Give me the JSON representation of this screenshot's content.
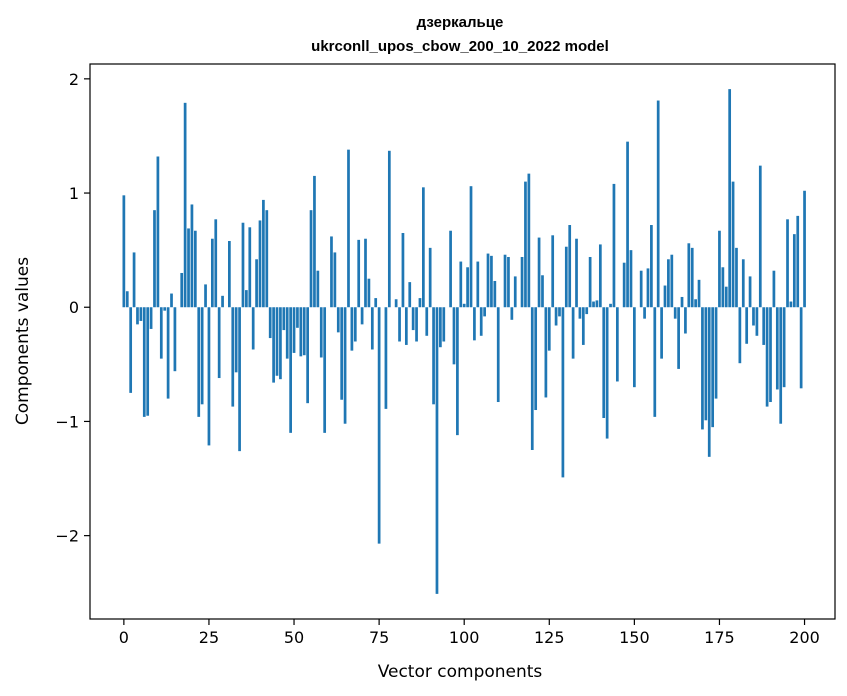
{
  "chart_data": {
    "type": "bar",
    "title": "дзеркальце",
    "subtitle": "ukrconll_upos_cbow_200_10_2022 model",
    "xlabel": "Vector components",
    "ylabel": "Components values",
    "xlim": [
      -9.95,
      208.95
    ],
    "ylim": [
      -2.73,
      2.13
    ],
    "xticks": [
      0,
      25,
      50,
      75,
      100,
      125,
      150,
      175,
      200
    ],
    "yticks": [
      -2,
      -1,
      0,
      1,
      2
    ],
    "ytick_labels": [
      "−2",
      "−1",
      "0",
      "1",
      "2"
    ],
    "grid": false,
    "bar_color": "#1f77b4",
    "values": [
      0.98,
      0.14,
      -0.75,
      0.48,
      -0.15,
      -0.12,
      -0.96,
      -0.95,
      -0.19,
      0.85,
      1.32,
      -0.45,
      -0.03,
      -0.8,
      0.12,
      -0.56,
      0.0,
      0.3,
      1.79,
      0.69,
      0.9,
      0.67,
      -0.96,
      -0.85,
      0.2,
      -1.21,
      0.6,
      0.77,
      -0.62,
      0.1,
      0.0,
      0.58,
      -0.87,
      -0.57,
      -1.26,
      0.74,
      0.15,
      0.7,
      -0.37,
      0.42,
      0.76,
      0.94,
      0.85,
      -0.27,
      -0.66,
      -0.6,
      -0.63,
      -0.2,
      -0.45,
      -1.1,
      -0.4,
      -0.18,
      -0.43,
      -0.42,
      -0.84,
      0.85,
      1.15,
      0.32,
      -0.44,
      -1.1,
      0.0,
      0.62,
      0.48,
      -0.22,
      -0.81,
      -1.02,
      1.38,
      -0.38,
      -0.3,
      0.59,
      -0.15,
      0.6,
      0.25,
      -0.37,
      0.08,
      -2.07,
      0.0,
      -0.89,
      1.37,
      0.0,
      0.07,
      -0.3,
      0.65,
      -0.33,
      0.22,
      -0.2,
      -0.3,
      0.08,
      1.05,
      -0.25,
      0.52,
      -0.85,
      -2.51,
      -0.35,
      -0.3,
      0.0,
      0.67,
      -0.5,
      -1.12,
      0.4,
      0.03,
      0.35,
      1.06,
      -0.29,
      0.4,
      -0.25,
      -0.08,
      0.47,
      0.45,
      0.23,
      -0.83,
      0.0,
      0.46,
      0.44,
      -0.11,
      0.27,
      0.0,
      0.44,
      1.1,
      1.17,
      -1.25,
      -0.9,
      0.61,
      0.28,
      -0.79,
      -0.38,
      0.63,
      -0.16,
      -0.08,
      -1.49,
      0.53,
      0.72,
      -0.45,
      0.6,
      -0.1,
      -0.33,
      -0.06,
      0.44,
      0.05,
      0.06,
      0.55,
      -0.97,
      -1.15,
      0.03,
      1.08,
      -0.65,
      0.0,
      0.39,
      1.45,
      0.5,
      -0.7,
      0.0,
      0.32,
      -0.1,
      0.34,
      0.72,
      -0.96,
      1.81,
      -0.45,
      0.19,
      0.42,
      0.46,
      -0.1,
      -0.54,
      0.09,
      -0.23,
      0.56,
      0.52,
      0.07,
      0.24,
      -1.07,
      -0.99,
      -1.31,
      -1.05,
      -0.8,
      0.67,
      0.35,
      0.18,
      1.91,
      1.1,
      0.52,
      -0.49,
      0.42,
      -0.32,
      0.27,
      -0.16,
      -0.25,
      1.24,
      -0.33,
      -0.87,
      -0.83,
      0.32,
      -0.72,
      -1.02,
      -0.7,
      0.77,
      0.05,
      0.64,
      0.8,
      -0.71,
      1.02
    ]
  }
}
